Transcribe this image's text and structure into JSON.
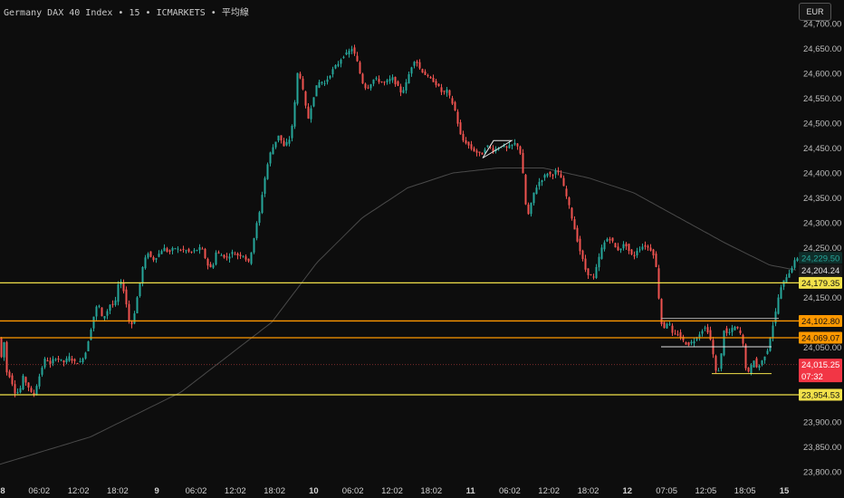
{
  "header": {
    "title": "Germany DAX 40 Index • 15 • ICMARKETS • 平均線",
    "currency_label": "EUR"
  },
  "colors": {
    "background": "#0d0d0d",
    "up": "#26a69a",
    "down": "#ef5350",
    "yellow_line": "#f2e14a",
    "orange_line": "#ff9800",
    "ma_line": "#4a4a4a",
    "text": "#bdbdbd"
  },
  "chart_data": {
    "type": "candlestick",
    "title": "Germany DAX 40 Index • 15 • ICMARKETS • 平均線",
    "ylim": [
      23775,
      24725
    ],
    "y_ticks": [
      {
        "value": 24700,
        "label": "24,700.00"
      },
      {
        "value": 24650,
        "label": "24,650.00"
      },
      {
        "value": 24600,
        "label": "24,600.00"
      },
      {
        "value": 24550,
        "label": "24,550.00"
      },
      {
        "value": 24500,
        "label": "24,500.00"
      },
      {
        "value": 24450,
        "label": "24,450.00"
      },
      {
        "value": 24400,
        "label": "24,400.00"
      },
      {
        "value": 24350,
        "label": "24,350.00"
      },
      {
        "value": 24300,
        "label": "24,300.00"
      },
      {
        "value": 24250,
        "label": "24,250.00"
      },
      {
        "value": 24150,
        "label": "24,150.00"
      },
      {
        "value": 24050,
        "label": "24,050.00"
      },
      {
        "value": 23900,
        "label": "23,900.00"
      },
      {
        "value": 23850,
        "label": "23,850.00"
      },
      {
        "value": 23800,
        "label": "23,800.00"
      }
    ],
    "x_ticks": [
      "8",
      "06:02",
      "12:02",
      "18:02",
      "9",
      "06:02",
      "12:02",
      "18:02",
      "10",
      "06:02",
      "12:02",
      "18:02",
      "11",
      "06:02",
      "12:02",
      "18:02",
      "12",
      "07:05",
      "12:05",
      "18:05",
      "15"
    ],
    "x_tick_bold": [
      true,
      false,
      false,
      false,
      true,
      false,
      false,
      false,
      true,
      false,
      false,
      false,
      true,
      false,
      false,
      false,
      true,
      false,
      false,
      false,
      true
    ],
    "price_waypoints": [
      [
        0,
        24070
      ],
      [
        3,
        24030
      ],
      [
        6,
        24060
      ],
      [
        9,
        24000
      ],
      [
        13,
        23990
      ],
      [
        18,
        23960
      ],
      [
        23,
        23960
      ],
      [
        27,
        23990
      ],
      [
        33,
        23970
      ],
      [
        38,
        23950
      ],
      [
        43,
        23980
      ],
      [
        48,
        24010
      ],
      [
        52,
        24030
      ],
      [
        57,
        24015
      ],
      [
        62,
        24030
      ],
      [
        67,
        24025
      ],
      [
        72,
        24020
      ],
      [
        78,
        24030
      ],
      [
        84,
        24020
      ],
      [
        90,
        24020
      ],
      [
        96,
        24040
      ],
      [
        101,
        24080
      ],
      [
        106,
        24120
      ],
      [
        110,
        24140
      ],
      [
        114,
        24110
      ],
      [
        118,
        24115
      ],
      [
        124,
        24140
      ],
      [
        128,
        24130
      ],
      [
        132,
        24175
      ],
      [
        136,
        24180
      ],
      [
        140,
        24150
      ],
      [
        143,
        24110
      ],
      [
        146,
        24090
      ],
      [
        149,
        24110
      ],
      [
        152,
        24140
      ],
      [
        156,
        24180
      ],
      [
        160,
        24220
      ],
      [
        165,
        24240
      ],
      [
        170,
        24225
      ],
      [
        176,
        24235
      ],
      [
        182,
        24250
      ],
      [
        188,
        24240
      ],
      [
        194,
        24250
      ],
      [
        200,
        24245
      ],
      [
        206,
        24245
      ],
      [
        212,
        24240
      ],
      [
        218,
        24245
      ],
      [
        224,
        24250
      ],
      [
        228,
        24230
      ],
      [
        232,
        24210
      ],
      [
        236,
        24210
      ],
      [
        240,
        24240
      ],
      [
        246,
        24235
      ],
      [
        252,
        24230
      ],
      [
        258,
        24240
      ],
      [
        264,
        24235
      ],
      [
        270,
        24235
      ],
      [
        276,
        24220
      ],
      [
        280,
        24250
      ],
      [
        284,
        24290
      ],
      [
        288,
        24320
      ],
      [
        292,
        24370
      ],
      [
        296,
        24410
      ],
      [
        300,
        24440
      ],
      [
        305,
        24460
      ],
      [
        310,
        24480
      ],
      [
        314,
        24450
      ],
      [
        318,
        24460
      ],
      [
        322,
        24470
      ],
      [
        326,
        24520
      ],
      [
        330,
        24600
      ],
      [
        334,
        24590
      ],
      [
        338,
        24540
      ],
      [
        342,
        24510
      ],
      [
        346,
        24540
      ],
      [
        350,
        24570
      ],
      [
        355,
        24585
      ],
      [
        360,
        24580
      ],
      [
        365,
        24595
      ],
      [
        370,
        24610
      ],
      [
        375,
        24620
      ],
      [
        380,
        24635
      ],
      [
        385,
        24640
      ],
      [
        390,
        24650
      ],
      [
        395,
        24630
      ],
      [
        399,
        24600
      ],
      [
        403,
        24575
      ],
      [
        407,
        24570
      ],
      [
        411,
        24580
      ],
      [
        415,
        24590
      ],
      [
        420,
        24585
      ],
      [
        425,
        24580
      ],
      [
        430,
        24585
      ],
      [
        435,
        24590
      ],
      [
        440,
        24575
      ],
      [
        445,
        24560
      ],
      [
        450,
        24580
      ],
      [
        455,
        24610
      ],
      [
        460,
        24630
      ],
      [
        465,
        24610
      ],
      [
        470,
        24600
      ],
      [
        475,
        24590
      ],
      [
        480,
        24585
      ],
      [
        485,
        24575
      ],
      [
        490,
        24560
      ],
      [
        495,
        24565
      ],
      [
        500,
        24545
      ],
      [
        505,
        24520
      ],
      [
        509,
        24480
      ],
      [
        513,
        24465
      ],
      [
        517,
        24460
      ],
      [
        521,
        24450
      ],
      [
        525,
        24445
      ],
      [
        529,
        24440
      ],
      [
        533,
        24435
      ],
      [
        537,
        24450
      ],
      [
        541,
        24455
      ],
      [
        546,
        24445
      ],
      [
        551,
        24450
      ],
      [
        556,
        24455
      ],
      [
        561,
        24450
      ],
      [
        566,
        24455
      ],
      [
        571,
        24460
      ],
      [
        575,
        24450
      ],
      [
        578,
        24420
      ],
      [
        581,
        24350
      ],
      [
        584,
        24310
      ],
      [
        587,
        24330
      ],
      [
        591,
        24360
      ],
      [
        596,
        24380
      ],
      [
        601,
        24390
      ],
      [
        606,
        24400
      ],
      [
        611,
        24395
      ],
      [
        616,
        24405
      ],
      [
        621,
        24390
      ],
      [
        625,
        24365
      ],
      [
        629,
        24340
      ],
      [
        633,
        24310
      ],
      [
        637,
        24280
      ],
      [
        641,
        24250
      ],
      [
        645,
        24225
      ],
      [
        649,
        24200
      ],
      [
        653,
        24195
      ],
      [
        657,
        24190
      ],
      [
        661,
        24215
      ],
      [
        665,
        24245
      ],
      [
        669,
        24260
      ],
      [
        673,
        24270
      ],
      [
        677,
        24265
      ],
      [
        681,
        24250
      ],
      [
        685,
        24245
      ],
      [
        689,
        24255
      ],
      [
        693,
        24255
      ],
      [
        697,
        24240
      ],
      [
        701,
        24230
      ],
      [
        705,
        24245
      ],
      [
        709,
        24250
      ],
      [
        713,
        24255
      ],
      [
        717,
        24250
      ],
      [
        721,
        24245
      ],
      [
        725,
        24230
      ],
      [
        729,
        24150
      ],
      [
        733,
        24080
      ],
      [
        737,
        24100
      ],
      [
        741,
        24095
      ],
      [
        745,
        24070
      ],
      [
        749,
        24080
      ],
      [
        753,
        24070
      ],
      [
        757,
        24060
      ],
      [
        761,
        24055
      ],
      [
        765,
        24060
      ],
      [
        769,
        24065
      ],
      [
        773,
        24075
      ],
      [
        777,
        24085
      ],
      [
        781,
        24090
      ],
      [
        785,
        24075
      ],
      [
        789,
        24035
      ],
      [
        793,
        23990
      ],
      [
        797,
        24020
      ],
      [
        801,
        24085
      ],
      [
        805,
        24075
      ],
      [
        809,
        24085
      ],
      [
        813,
        24090
      ],
      [
        817,
        24085
      ],
      [
        821,
        24070
      ],
      [
        825,
        24010
      ],
      [
        829,
        23995
      ],
      [
        833,
        24030
      ],
      [
        837,
        24010
      ],
      [
        841,
        24015
      ],
      [
        845,
        24030
      ],
      [
        849,
        24045
      ],
      [
        853,
        24080
      ],
      [
        857,
        24110
      ],
      [
        861,
        24150
      ],
      [
        865,
        24175
      ],
      [
        869,
        24190
      ],
      [
        873,
        24200
      ],
      [
        877,
        24215
      ],
      [
        881,
        24229.5
      ]
    ],
    "moving_average_waypoints": [
      [
        0,
        23815
      ],
      [
        100,
        23870
      ],
      [
        200,
        23960
      ],
      [
        300,
        24100
      ],
      [
        350,
        24220
      ],
      [
        400,
        24310
      ],
      [
        450,
        24370
      ],
      [
        500,
        24400
      ],
      [
        550,
        24410
      ],
      [
        600,
        24410
      ],
      [
        650,
        24390
      ],
      [
        700,
        24360
      ],
      [
        750,
        24310
      ],
      [
        800,
        24260
      ],
      [
        850,
        24215
      ],
      [
        881,
        24204.24
      ]
    ],
    "horizontal_levels": [
      {
        "value": 24179.35,
        "label": "24,179.35",
        "color": "#f2e14a"
      },
      {
        "value": 24102.8,
        "label": "24,102.80",
        "color": "#ff9800"
      },
      {
        "value": 24069.07,
        "label": "24,069.07",
        "color": "#ff9800"
      },
      {
        "value": 23954.53,
        "label": "23,954.53",
        "color": "#f2e14a"
      }
    ],
    "short_levels": [
      {
        "value": 24108,
        "x_from": 730,
        "x_to": 860,
        "color": "#aaaaaa"
      },
      {
        "value": 24051,
        "x_from": 730,
        "x_to": 852,
        "color": "#e0e0e0"
      },
      {
        "value": 23997,
        "x_from": 786,
        "x_to": 852,
        "color": "#f2e14a"
      }
    ],
    "last_price": {
      "value": 24229.5,
      "label": "24,229.50"
    },
    "ma_value": {
      "value": 24204.24,
      "label": "24,204.24"
    },
    "bid": {
      "value": 24015.25,
      "label": "24,015.25",
      "countdown": "07:32"
    },
    "annotation": {
      "type": "triangle",
      "points": [
        [
          533,
          24430
        ],
        [
          545,
          24465
        ],
        [
          565,
          24465
        ]
      ]
    }
  }
}
